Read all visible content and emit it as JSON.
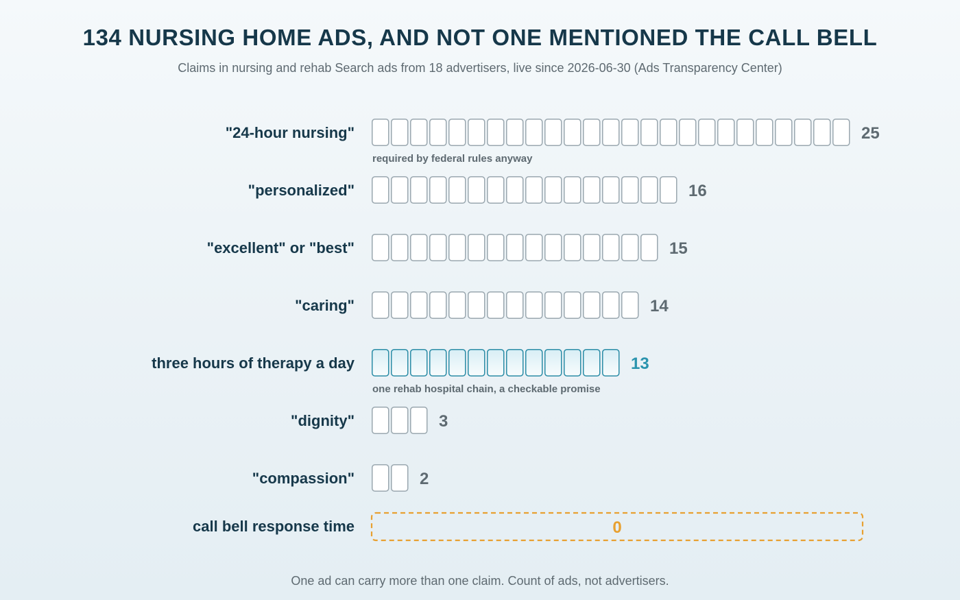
{
  "title": "134 NURSING HOME ADS, AND NOT ONE MENTIONED THE CALL BELL",
  "subtitle": "Claims in nursing and rehab Search ads from 18 advertisers, live since 2026-06-30 (Ads Transparency Center)",
  "footnote": "One ad can carry more than one claim. Count of ads, not advertisers.",
  "colors": {
    "title": "#16384a",
    "label": "#16384a",
    "muted": "#5e6a71",
    "unit_stroke": "#9aa7af",
    "unit_fill": "#ffffff",
    "highlight_stroke": "#2a8ca6",
    "highlight_fill": "#e8f4f8",
    "highlight_text": "#2a94ae",
    "zero_accent": "#e8a030"
  },
  "chart_data": {
    "type": "bar",
    "style": "unit squares, one square per ad",
    "categories": [
      "\"24-hour nursing\"",
      "\"personalized\"",
      "\"excellent\" or \"best\"",
      "\"caring\"",
      "three hours of therapy a day",
      "\"dignity\"",
      "\"compassion\"",
      "call bell response time"
    ],
    "values": [
      25,
      16,
      15,
      14,
      13,
      3,
      2,
      0
    ],
    "notes": [
      "required by federal rules anyway",
      "",
      "",
      "",
      "one rehab hospital chain, a checkable promise",
      "",
      "",
      ""
    ],
    "highlight": [
      "normal",
      "normal",
      "normal",
      "normal",
      "accent",
      "normal",
      "normal",
      "zero"
    ],
    "xlim": [
      0,
      25
    ],
    "grid": false,
    "legend": "none"
  }
}
